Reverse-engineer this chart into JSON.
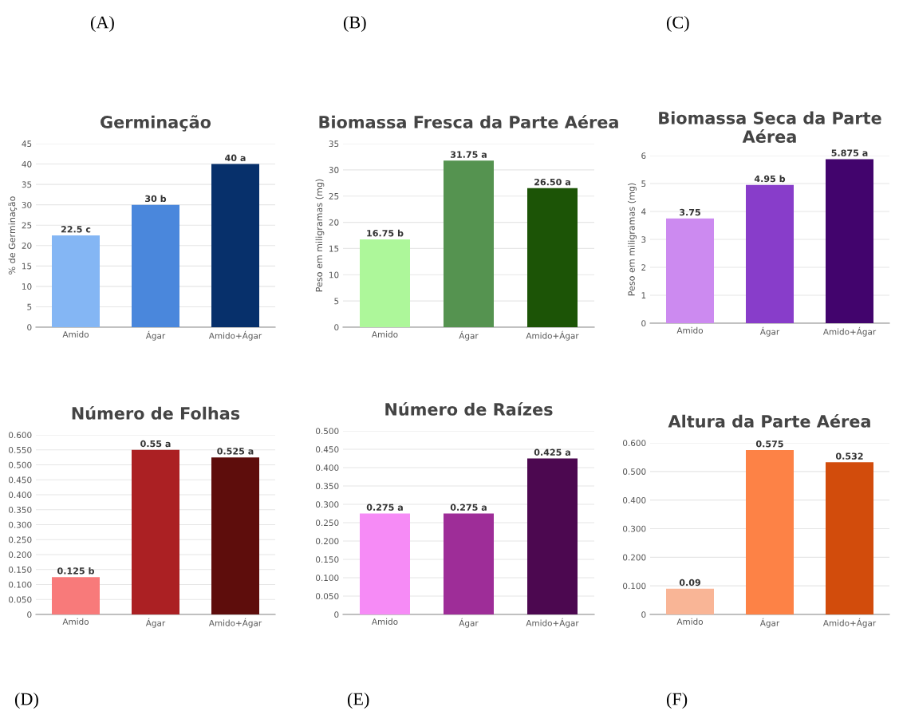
{
  "chart_data": [
    {
      "type": "bar",
      "title": "Germinação",
      "ylabel": "% de Germinação",
      "categories": [
        "Amido",
        "Ágar",
        "Amido+Ágar"
      ],
      "values": [
        22.5,
        30,
        40
      ],
      "colors": [
        "#84b6f4",
        "#4a87dc",
        "#07306b"
      ],
      "value_labels": [
        "22.5 c",
        "30 b",
        "40 a"
      ],
      "ylim": [
        0,
        45
      ],
      "yticks": [
        0,
        5,
        10,
        15,
        20,
        25,
        30,
        35,
        40,
        45
      ],
      "grid": "y",
      "annotations": [
        "(A)"
      ]
    },
    {
      "type": "bar",
      "title": "Biomassa Fresca da Parte Aérea",
      "ylabel": "Peso em miligramas (mg)",
      "categories": [
        "Amido",
        "Ágar",
        "Amido+Ágar"
      ],
      "values": [
        16.75,
        31.75,
        26.5
      ],
      "colors": [
        "#adf79a",
        "#559350",
        "#1c5406"
      ],
      "value_labels": [
        "16.75 b",
        "31.75 a",
        "26.50 a"
      ],
      "ylim": [
        0,
        35
      ],
      "yticks": [
        0,
        5,
        10,
        15,
        20,
        25,
        30,
        35
      ],
      "grid": "y",
      "annotations": [
        "(B)"
      ]
    },
    {
      "type": "bar",
      "title": "Biomassa Seca da Parte Aérea",
      "ylabel": "Peso em miligramas (mg)",
      "categories": [
        "Amido",
        "Ágar",
        "Amido+Ágar"
      ],
      "values": [
        3.75,
        4.95,
        5.875
      ],
      "colors": [
        "#cc8af0",
        "#883dca",
        "#42046d"
      ],
      "value_labels": [
        "3.75",
        "4.95 b",
        "5.875 a"
      ],
      "ylim": [
        0,
        6
      ],
      "yticks": [
        0,
        1,
        2,
        3,
        4,
        5,
        6
      ],
      "grid": "y",
      "annotations": [
        "(C)"
      ]
    },
    {
      "type": "bar",
      "title": "Número de Folhas",
      "categories": [
        "Amido",
        "Ágar",
        "Amido+Ágar"
      ],
      "values": [
        0.125,
        0.55,
        0.525
      ],
      "colors": [
        "#f87a7a",
        "#ab2023",
        "#5e0d0c"
      ],
      "value_labels": [
        "0.125 b",
        "0.55 a",
        "0.525 a"
      ],
      "ylim": [
        0,
        0.6
      ],
      "yticks": [
        0,
        {
          "value": 0.05,
          "label": "0.050"
        },
        {
          "value": 0.1,
          "label": "0.100"
        },
        {
          "value": 0.15,
          "label": "0.150"
        },
        {
          "value": 0.2,
          "label": "0.200"
        },
        {
          "value": 0.25,
          "label": "0.250"
        },
        {
          "value": 0.3,
          "label": "0.300"
        },
        {
          "value": 0.35,
          "label": "0.350"
        },
        {
          "value": 0.4,
          "label": "0.400"
        },
        {
          "value": 0.45,
          "label": "0.450"
        },
        {
          "value": 0.5,
          "label": "0.500"
        },
        {
          "value": 0.55,
          "label": "0.550"
        },
        {
          "value": 0.6,
          "label": "0.600"
        }
      ],
      "grid": "y",
      "annotations": [
        "(D)"
      ]
    },
    {
      "type": "bar",
      "title": "Número de Raízes",
      "categories": [
        "Amido",
        "Ágar",
        "Amido+Ágar"
      ],
      "values": [
        0.275,
        0.275,
        0.425
      ],
      "colors": [
        "#f68bf6",
        "#9e2d98",
        "#4c0850"
      ],
      "value_labels": [
        "0.275 a",
        "0.275 a",
        "0.425 a"
      ],
      "ylim": [
        0,
        0.5
      ],
      "yticks": [
        0,
        {
          "value": 0.05,
          "label": "0.050"
        },
        {
          "value": 0.1,
          "label": "0.100"
        },
        {
          "value": 0.15,
          "label": "0.150"
        },
        {
          "value": 0.2,
          "label": "0.200"
        },
        {
          "value": 0.25,
          "label": "0.250"
        },
        {
          "value": 0.3,
          "label": "0.300"
        },
        {
          "value": 0.35,
          "label": "0.350"
        },
        {
          "value": 0.4,
          "label": "0.400"
        },
        {
          "value": 0.45,
          "label": "0.450"
        },
        {
          "value": 0.5,
          "label": "0.500"
        }
      ],
      "grid": "y",
      "annotations": [
        "(E)"
      ]
    },
    {
      "type": "bar",
      "title": "Altura da Parte Aérea",
      "categories": [
        "Amido",
        "Ágar",
        "Amido+Ágar"
      ],
      "values": [
        0.09,
        0.575,
        0.532
      ],
      "colors": [
        "#f9b596",
        "#fd8246",
        "#d24c0c"
      ],
      "value_labels": [
        "0.09",
        "0.575",
        "0.532"
      ],
      "ylim": [
        0,
        0.6
      ],
      "yticks": [
        0,
        {
          "value": 0.1,
          "label": "0.100"
        },
        {
          "value": 0.2,
          "label": "0.200"
        },
        {
          "value": 0.3,
          "label": "0.300"
        },
        {
          "value": 0.4,
          "label": "0.400"
        },
        {
          "value": 0.5,
          "label": "0.500"
        },
        {
          "value": 0.6,
          "label": "0.600"
        }
      ],
      "grid": "y",
      "annotations": [
        "(F)"
      ]
    }
  ]
}
